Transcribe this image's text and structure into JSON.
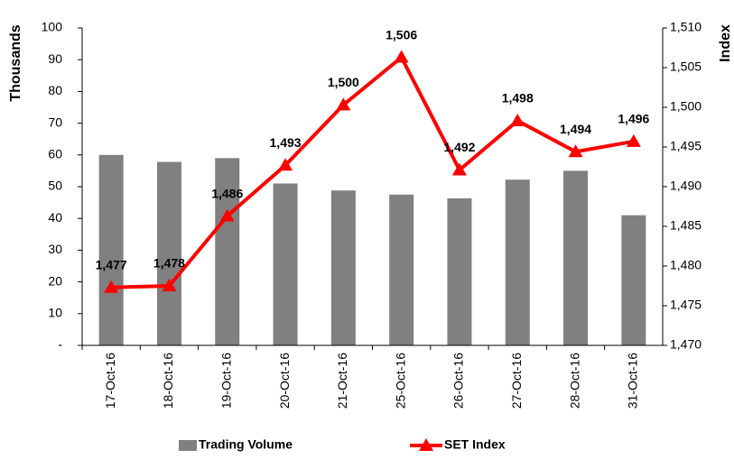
{
  "chart_data": {
    "type": "bar-line",
    "categories": [
      "17-Oct-16",
      "18-Oct-16",
      "19-Oct-16",
      "20-Oct-16",
      "21-Oct-16",
      "25-Oct-16",
      "26-Oct-16",
      "27-Oct-16",
      "28-Oct-16",
      "31-Oct-16"
    ],
    "ylabel": "Thousands",
    "y2label": "Index",
    "ylim": [
      0,
      100
    ],
    "yticks": [
      {
        "value": 0,
        "label": "-"
      },
      10,
      20,
      30,
      40,
      50,
      60,
      70,
      80,
      90,
      100
    ],
    "y2lim": [
      1470,
      1510
    ],
    "y2ticks": [
      {
        "value": 1470,
        "label": "1,470"
      },
      {
        "value": 1475,
        "label": "1,475"
      },
      {
        "value": 1480,
        "label": "1,480"
      },
      {
        "value": 1485,
        "label": "1,485"
      },
      {
        "value": 1490,
        "label": "1,490"
      },
      {
        "value": 1495,
        "label": "1,495"
      },
      {
        "value": 1500,
        "label": "1,500"
      },
      {
        "value": 1505,
        "label": "1,505"
      },
      {
        "value": 1510,
        "label": "1,510"
      }
    ],
    "series": [
      {
        "name": "Trading Volume",
        "type": "bar",
        "color": "#808080",
        "values": [
          60,
          57.8,
          59,
          51,
          48.8,
          47.5,
          46.3,
          52.2,
          55,
          41
        ]
      },
      {
        "name": "SET Index",
        "type": "line",
        "axis": "y2",
        "color": "#ff0000",
        "values": [
          1477.3,
          1477.5,
          1486.3,
          1492.7,
          1500.3,
          1506.3,
          1492.1,
          1498.3,
          1494.4,
          1495.7
        ],
        "value_labels": [
          "1,477",
          "1,478",
          "1,486",
          "1,493",
          "1,500",
          "1,506",
          "1,492",
          "1,498",
          "1,494",
          "1,496"
        ]
      }
    ]
  }
}
